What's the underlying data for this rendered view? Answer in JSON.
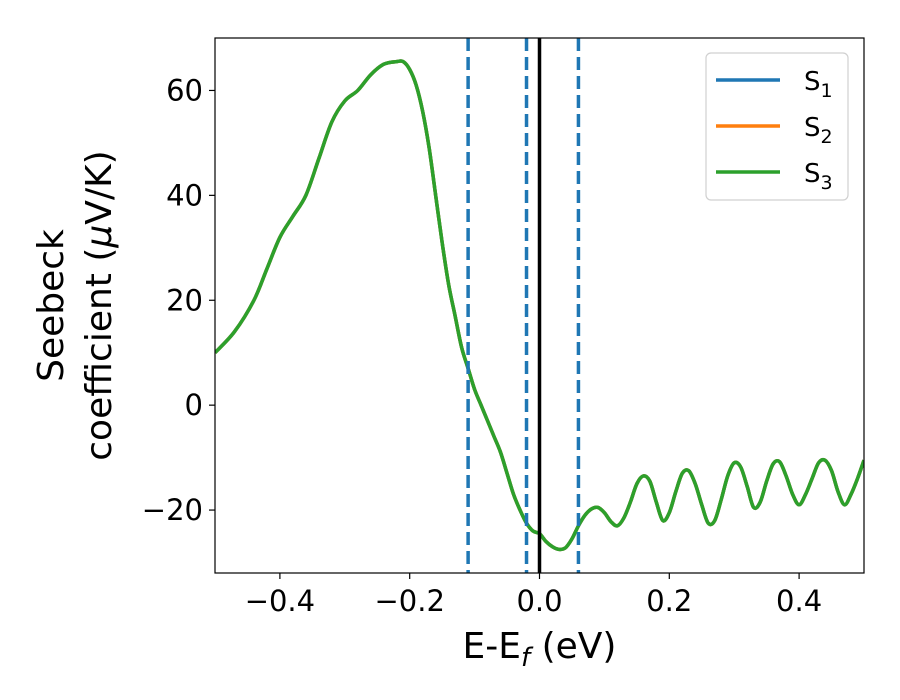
{
  "chart_data": {
    "type": "line",
    "xlabel": {
      "main": "E-E",
      "sub": "f",
      "unit": " (eV)"
    },
    "ylabel": {
      "line1": "Seebeck",
      "line2": "coefficient  (",
      "mu": "μ",
      "line2_end": "V/K)"
    },
    "xlim": [
      -0.5,
      0.5
    ],
    "ylim": [
      -32,
      70
    ],
    "xticks": [
      -0.4,
      -0.2,
      0.0,
      0.2,
      0.4
    ],
    "xtick_labels": [
      "−0.4",
      "−0.2",
      "0.0",
      "0.2",
      "0.4"
    ],
    "yticks": [
      -20,
      0,
      20,
      40,
      60
    ],
    "ytick_labels": [
      "−20",
      "0",
      "20",
      "40",
      "60"
    ],
    "grid": false,
    "legend_position": "top-right",
    "series": [
      {
        "name": "S",
        "sub": "1",
        "color": "#1f77b4"
      },
      {
        "name": "S",
        "sub": "2",
        "color": "#ff7f0e"
      },
      {
        "name": "S",
        "sub": "3",
        "color": "#2ca02c"
      }
    ],
    "x": [
      -0.5,
      -0.47,
      -0.44,
      -0.42,
      -0.4,
      -0.38,
      -0.36,
      -0.34,
      -0.32,
      -0.3,
      -0.28,
      -0.26,
      -0.24,
      -0.22,
      -0.21,
      -0.2,
      -0.19,
      -0.18,
      -0.17,
      -0.16,
      -0.15,
      -0.14,
      -0.13,
      -0.12,
      -0.11,
      -0.1,
      -0.09,
      -0.08,
      -0.07,
      -0.06,
      -0.05,
      -0.04,
      -0.03,
      -0.02,
      -0.01,
      0.0,
      0.01,
      0.02,
      0.03,
      0.04,
      0.05,
      0.06,
      0.07,
      0.08,
      0.09,
      0.1,
      0.11,
      0.12,
      0.13,
      0.14,
      0.15,
      0.16,
      0.17,
      0.18,
      0.19,
      0.2,
      0.21,
      0.22,
      0.23,
      0.24,
      0.25,
      0.26,
      0.27,
      0.28,
      0.29,
      0.3,
      0.31,
      0.32,
      0.33,
      0.34,
      0.35,
      0.36,
      0.37,
      0.38,
      0.39,
      0.4,
      0.41,
      0.42,
      0.43,
      0.44,
      0.45,
      0.46,
      0.47,
      0.48,
      0.49,
      0.5
    ],
    "y": [
      10,
      14,
      20,
      26,
      32,
      36,
      40,
      47,
      54,
      58,
      60,
      63,
      65,
      65.5,
      65.5,
      64,
      61,
      56,
      49,
      40,
      31,
      23,
      17,
      11,
      7,
      3,
      0,
      -3,
      -6,
      -9,
      -13,
      -17,
      -20,
      -22.5,
      -24,
      -24.5,
      -26,
      -27,
      -27.5,
      -27.2,
      -25.5,
      -23,
      -21,
      -19.8,
      -19.5,
      -20.5,
      -22.2,
      -23,
      -21.5,
      -18.5,
      -15,
      -13.5,
      -14.5,
      -18.5,
      -22,
      -20.5,
      -16.5,
      -13,
      -12.5,
      -15,
      -19,
      -22.5,
      -22,
      -18,
      -13.5,
      -11,
      -11.8,
      -15.5,
      -19.5,
      -18.5,
      -14.5,
      -11.2,
      -10.8,
      -13.5,
      -17,
      -19,
      -17,
      -14,
      -11,
      -10.5,
      -12.5,
      -16.5,
      -19,
      -17,
      -14,
      -10.5
    ],
    "vlines": [
      {
        "x": -0.11,
        "style": "dashed",
        "color": "#1f77b4"
      },
      {
        "x": -0.02,
        "style": "dashed",
        "color": "#1f77b4"
      },
      {
        "x": 0.0,
        "style": "solid",
        "color": "#000000"
      },
      {
        "x": 0.06,
        "style": "dashed",
        "color": "#1f77b4"
      }
    ]
  }
}
